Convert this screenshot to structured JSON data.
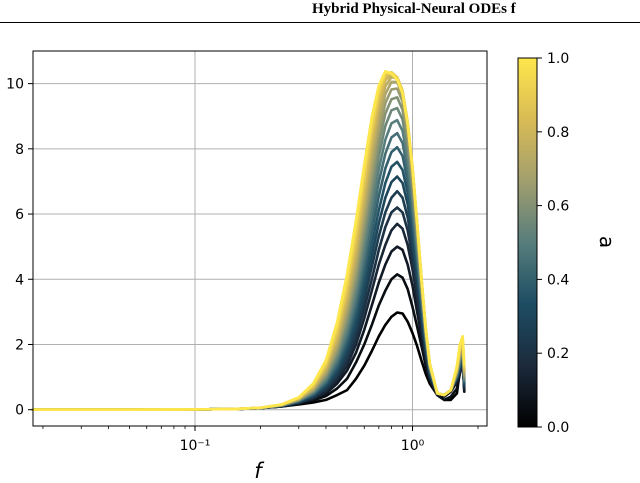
{
  "header": {
    "title": "Hybrid Physical-Neural ODEs f"
  },
  "chart_data": {
    "type": "line",
    "title": "",
    "xlabel": "f",
    "ylabel": "",
    "xscale": "log",
    "xlim": [
      0.018,
      2.2
    ],
    "ylim": [
      -0.5,
      11.0
    ],
    "grid": true,
    "x_ticks": [
      0.1,
      1.0
    ],
    "x_tick_labels": [
      "10⁻¹",
      "10⁰"
    ],
    "y_ticks": [
      0,
      2,
      4,
      6,
      8,
      10
    ],
    "y_tick_labels": [
      "0",
      "2",
      "4",
      "6",
      "8",
      "10"
    ],
    "colorbar": {
      "label": "a",
      "range": [
        0.0,
        1.0
      ],
      "ticks": [
        0.0,
        0.2,
        0.4,
        0.6,
        0.8,
        1.0
      ],
      "tick_labels": [
        "0.0",
        "0.2",
        "0.4",
        "0.6",
        "0.8",
        "1.0"
      ],
      "colormap": [
        "#000000",
        "#1c2a3c",
        "#1d4d63",
        "#577d7c",
        "#a19f6e",
        "#d9bb55",
        "#fde74c"
      ]
    },
    "x": [
      0.018,
      0.05,
      0.1,
      0.15,
      0.2,
      0.25,
      0.3,
      0.35,
      0.4,
      0.45,
      0.5,
      0.55,
      0.6,
      0.65,
      0.7,
      0.75,
      0.8,
      0.85,
      0.9,
      0.95,
      1.0,
      1.05,
      1.1,
      1.15,
      1.2,
      1.3,
      1.4,
      1.5,
      1.6,
      1.65,
      1.7,
      1.73
    ],
    "series": [
      {
        "a": 0.0,
        "y": [
          0.0,
          0.0,
          0.01,
          0.02,
          0.05,
          0.1,
          0.16,
          0.22,
          0.3,
          0.45,
          0.6,
          0.95,
          1.35,
          1.8,
          2.25,
          2.6,
          2.85,
          2.98,
          2.95,
          2.7,
          2.35,
          1.95,
          1.5,
          1.1,
          0.8,
          0.45,
          0.3,
          0.3,
          0.5,
          1.2,
          1.7,
          0.6
        ]
      },
      {
        "a": 0.05,
        "y": [
          0.0,
          0.0,
          0.01,
          0.02,
          0.05,
          0.1,
          0.18,
          0.28,
          0.42,
          0.65,
          0.95,
          1.45,
          2.0,
          2.6,
          3.2,
          3.65,
          4.0,
          4.15,
          4.05,
          3.7,
          3.15,
          2.55,
          1.95,
          1.35,
          0.9,
          0.45,
          0.3,
          0.4,
          0.65,
          1.1,
          1.5,
          0.55
        ]
      },
      {
        "a": 0.1,
        "y": [
          0.0,
          0.0,
          0.01,
          0.02,
          0.05,
          0.1,
          0.2,
          0.32,
          0.5,
          0.8,
          1.2,
          1.75,
          2.45,
          3.2,
          3.9,
          4.45,
          4.85,
          5.0,
          4.9,
          4.45,
          3.8,
          3.0,
          2.25,
          1.5,
          0.95,
          0.45,
          0.4,
          0.55,
          0.85,
          1.1,
          1.45,
          0.6
        ]
      },
      {
        "a": 0.15,
        "y": [
          0.0,
          0.0,
          0.01,
          0.02,
          0.05,
          0.11,
          0.21,
          0.35,
          0.56,
          0.9,
          1.35,
          2.0,
          2.8,
          3.65,
          4.45,
          5.05,
          5.5,
          5.7,
          5.55,
          5.05,
          4.3,
          3.4,
          2.5,
          1.65,
          1.0,
          0.5,
          0.45,
          0.6,
          0.9,
          1.15,
          1.5,
          0.65
        ]
      },
      {
        "a": 0.2,
        "y": [
          0.0,
          0.0,
          0.01,
          0.02,
          0.05,
          0.11,
          0.22,
          0.38,
          0.62,
          1.0,
          1.5,
          2.2,
          3.1,
          4.0,
          4.9,
          5.6,
          6.05,
          6.2,
          6.05,
          5.5,
          4.65,
          3.65,
          2.7,
          1.75,
          1.05,
          0.5,
          0.45,
          0.6,
          0.95,
          1.2,
          1.55,
          0.7
        ]
      },
      {
        "a": 0.25,
        "y": [
          0.0,
          0.0,
          0.01,
          0.02,
          0.05,
          0.11,
          0.23,
          0.4,
          0.67,
          1.08,
          1.65,
          2.42,
          3.38,
          4.38,
          5.32,
          6.05,
          6.5,
          6.7,
          6.5,
          5.9,
          5.0,
          3.95,
          2.85,
          1.85,
          1.1,
          0.5,
          0.45,
          0.6,
          0.95,
          1.25,
          1.6,
          0.75
        ]
      },
      {
        "a": 0.3,
        "y": [
          0.0,
          0.0,
          0.01,
          0.02,
          0.05,
          0.12,
          0.24,
          0.42,
          0.72,
          1.17,
          1.8,
          2.62,
          3.65,
          4.72,
          5.72,
          6.5,
          6.98,
          7.15,
          6.95,
          6.3,
          5.3,
          4.15,
          3.0,
          1.95,
          1.15,
          0.5,
          0.45,
          0.6,
          1.0,
          1.3,
          1.65,
          0.8
        ]
      },
      {
        "a": 0.35,
        "y": [
          0.0,
          0.0,
          0.01,
          0.02,
          0.05,
          0.12,
          0.25,
          0.45,
          0.77,
          1.26,
          1.95,
          2.85,
          3.95,
          5.08,
          6.12,
          6.95,
          7.45,
          7.6,
          7.35,
          6.65,
          5.6,
          4.4,
          3.15,
          2.05,
          1.2,
          0.5,
          0.45,
          0.6,
          1.0,
          1.35,
          1.7,
          0.8
        ]
      },
      {
        "a": 0.4,
        "y": [
          0.0,
          0.0,
          0.01,
          0.02,
          0.05,
          0.12,
          0.26,
          0.47,
          0.82,
          1.35,
          2.1,
          3.08,
          4.25,
          5.45,
          6.55,
          7.4,
          7.9,
          8.05,
          7.78,
          7.0,
          5.9,
          4.6,
          3.3,
          2.1,
          1.2,
          0.5,
          0.45,
          0.6,
          1.05,
          1.4,
          1.75,
          0.85
        ]
      },
      {
        "a": 0.45,
        "y": [
          0.0,
          0.0,
          0.01,
          0.02,
          0.05,
          0.13,
          0.27,
          0.5,
          0.87,
          1.45,
          2.25,
          3.3,
          4.55,
          5.82,
          6.98,
          7.85,
          8.35,
          8.48,
          8.18,
          7.35,
          6.18,
          4.8,
          3.42,
          2.18,
          1.25,
          0.5,
          0.45,
          0.6,
          1.05,
          1.45,
          1.8,
          0.9
        ]
      },
      {
        "a": 0.5,
        "y": [
          0.0,
          0.0,
          0.01,
          0.02,
          0.05,
          0.13,
          0.28,
          0.52,
          0.92,
          1.55,
          2.4,
          3.52,
          4.85,
          6.18,
          7.38,
          8.28,
          8.78,
          8.88,
          8.55,
          7.68,
          6.45,
          5.0,
          3.55,
          2.25,
          1.3,
          0.5,
          0.45,
          0.6,
          1.1,
          1.5,
          1.85,
          0.9
        ]
      },
      {
        "a": 0.55,
        "y": [
          0.0,
          0.0,
          0.01,
          0.02,
          0.05,
          0.13,
          0.29,
          0.55,
          0.98,
          1.65,
          2.58,
          3.75,
          5.15,
          6.55,
          7.78,
          8.7,
          9.18,
          9.25,
          8.9,
          7.98,
          6.7,
          5.18,
          3.65,
          2.3,
          1.3,
          0.5,
          0.45,
          0.6,
          1.1,
          1.55,
          1.9,
          0.95
        ]
      },
      {
        "a": 0.6,
        "y": [
          0.0,
          0.0,
          0.01,
          0.02,
          0.06,
          0.14,
          0.3,
          0.58,
          1.04,
          1.75,
          2.75,
          3.98,
          5.45,
          6.9,
          8.15,
          9.08,
          9.52,
          9.58,
          9.2,
          8.25,
          6.92,
          5.35,
          3.75,
          2.35,
          1.35,
          0.5,
          0.45,
          0.6,
          1.15,
          1.6,
          1.95,
          1.0
        ]
      },
      {
        "a": 0.65,
        "y": [
          0.0,
          0.0,
          0.01,
          0.02,
          0.06,
          0.14,
          0.31,
          0.6,
          1.1,
          1.86,
          2.92,
          4.22,
          5.75,
          7.22,
          8.5,
          9.4,
          9.82,
          9.85,
          9.45,
          8.48,
          7.1,
          5.48,
          3.85,
          2.4,
          1.35,
          0.5,
          0.45,
          0.6,
          1.15,
          1.65,
          2.0,
          1.05
        ]
      },
      {
        "a": 0.7,
        "y": [
          0.0,
          0.0,
          0.01,
          0.02,
          0.06,
          0.14,
          0.32,
          0.63,
          1.16,
          1.97,
          3.1,
          4.45,
          6.05,
          7.55,
          8.82,
          9.68,
          10.05,
          10.05,
          9.65,
          8.65,
          7.25,
          5.6,
          3.92,
          2.45,
          1.4,
          0.5,
          0.45,
          0.6,
          1.2,
          1.7,
          2.05,
          1.1
        ]
      },
      {
        "a": 0.75,
        "y": [
          0.0,
          0.0,
          0.01,
          0.02,
          0.06,
          0.15,
          0.33,
          0.66,
          1.22,
          2.08,
          3.27,
          4.68,
          6.32,
          7.85,
          9.1,
          9.92,
          10.2,
          10.15,
          9.75,
          8.75,
          7.35,
          5.68,
          3.98,
          2.48,
          1.4,
          0.5,
          0.45,
          0.6,
          1.2,
          1.75,
          2.1,
          1.15
        ]
      },
      {
        "a": 0.8,
        "y": [
          0.0,
          0.0,
          0.01,
          0.02,
          0.06,
          0.15,
          0.34,
          0.69,
          1.28,
          2.2,
          3.45,
          4.92,
          6.58,
          8.12,
          9.35,
          10.1,
          10.3,
          10.2,
          9.78,
          8.8,
          7.4,
          5.72,
          4.0,
          2.5,
          1.42,
          0.5,
          0.45,
          0.6,
          1.25,
          1.8,
          2.15,
          1.2
        ]
      },
      {
        "a": 0.85,
        "y": [
          0.0,
          0.0,
          0.01,
          0.02,
          0.06,
          0.15,
          0.35,
          0.72,
          1.34,
          2.32,
          3.62,
          5.15,
          6.85,
          8.38,
          9.55,
          10.22,
          10.35,
          10.2,
          9.78,
          8.82,
          7.42,
          5.75,
          4.02,
          2.5,
          1.42,
          0.5,
          0.45,
          0.6,
          1.25,
          1.85,
          2.2,
          1.25
        ]
      },
      {
        "a": 0.9,
        "y": [
          0.0,
          0.0,
          0.01,
          0.02,
          0.06,
          0.16,
          0.36,
          0.75,
          1.4,
          2.44,
          3.8,
          5.38,
          7.1,
          8.6,
          9.72,
          10.3,
          10.35,
          10.18,
          9.75,
          8.8,
          7.42,
          5.75,
          4.02,
          2.5,
          1.42,
          0.5,
          0.45,
          0.6,
          1.3,
          1.9,
          2.2,
          1.3
        ]
      },
      {
        "a": 0.95,
        "y": [
          0.0,
          0.0,
          0.01,
          0.02,
          0.06,
          0.16,
          0.37,
          0.78,
          1.46,
          2.56,
          3.98,
          5.6,
          7.32,
          8.8,
          9.85,
          10.35,
          10.33,
          10.15,
          9.72,
          8.78,
          7.4,
          5.74,
          4.0,
          2.5,
          1.42,
          0.5,
          0.45,
          0.6,
          1.3,
          1.95,
          2.25,
          1.35
        ]
      },
      {
        "a": 1.0,
        "y": [
          0.0,
          0.0,
          0.01,
          0.02,
          0.06,
          0.16,
          0.38,
          0.81,
          1.52,
          2.68,
          4.15,
          5.82,
          7.52,
          8.98,
          9.95,
          10.38,
          10.3,
          10.12,
          9.7,
          8.75,
          7.38,
          5.72,
          3.98,
          2.48,
          1.4,
          0.5,
          0.45,
          0.6,
          1.35,
          2.0,
          2.25,
          1.4
        ]
      }
    ]
  }
}
